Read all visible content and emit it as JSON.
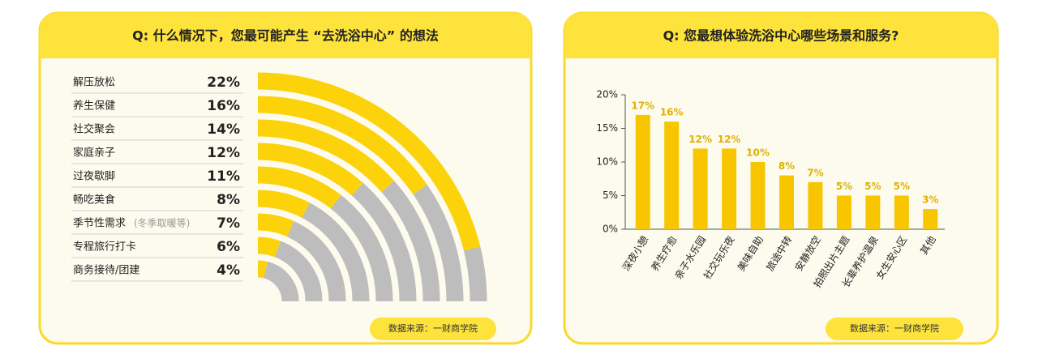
{
  "chart_data": [
    {
      "type": "radial-bar",
      "title": "Q: 什么情况下，您最可能产生 “去洗浴中心” 的想法",
      "categories": [
        "解压放松",
        "养生保健",
        "社交聚会",
        "家庭亲子",
        "过夜歇脚",
        "畅吃美食",
        "季节性需求",
        "专程旅行打卡",
        "商务接待/团建"
      ],
      "note": "(冬季取暖等)",
      "values": [
        22,
        16,
        14,
        12,
        11,
        8,
        7,
        6,
        4
      ],
      "value_labels": [
        "22%",
        "16%",
        "14%",
        "12%",
        "11%",
        "8%",
        "7%",
        "6%",
        "4%"
      ],
      "rlim": [
        0,
        26
      ],
      "color": "#fcd20a",
      "track_color": "#bdbdbd",
      "source": "数据来源：一财商学院"
    },
    {
      "type": "bar",
      "title": "Q: 您最想体验洗浴中心哪些场景和服务?",
      "categories": [
        "深夜小憩",
        "养生疗愈",
        "亲子水乐园",
        "社交玩乐夜",
        "美味自助",
        "旅途中转",
        "安静放空",
        "拍照出片主题",
        "长辈养护温泉",
        "女生安心区",
        "其他"
      ],
      "values": [
        17,
        16,
        12,
        12,
        10,
        8,
        7,
        5,
        5,
        5,
        3
      ],
      "value_labels": [
        "17%",
        "16%",
        "12%",
        "12%",
        "10%",
        "8%",
        "7%",
        "5%",
        "5%",
        "5%",
        "3%"
      ],
      "ylim": [
        0,
        20
      ],
      "yticks": [
        {
          "value": 0,
          "label": "0%"
        },
        {
          "value": 5,
          "label": "5%"
        },
        {
          "value": 10,
          "label": "10%"
        },
        {
          "value": 15,
          "label": "15%"
        },
        {
          "value": 20,
          "label": "20%"
        }
      ],
      "color": "#f7c600",
      "source": "数据来源：一财商学院"
    }
  ]
}
